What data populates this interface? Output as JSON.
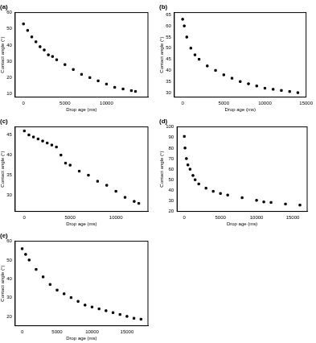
{
  "chart_data": [
    {
      "type": "scatter",
      "title": "(a)",
      "x_label": "Drop age (ms)",
      "y_label": "Contact angle (°)",
      "color": "#000000",
      "marker": "square",
      "grid": false,
      "x": [
        0,
        500,
        1000,
        1500,
        2000,
        2500,
        3000,
        3500,
        4000,
        5000,
        6000,
        7000,
        8000,
        9000,
        10000,
        11000,
        12000,
        13000,
        13500
      ],
      "values": [
        53,
        49,
        45,
        42,
        39,
        37,
        34,
        33,
        31,
        28,
        25,
        22,
        20,
        18,
        16,
        14,
        13,
        12,
        11.5
      ],
      "xlim": [
        -1000,
        15000
      ],
      "xticks": [
        0,
        5000,
        10000
      ],
      "ylim": [
        8,
        60
      ],
      "yticks": [
        10,
        20,
        30,
        40,
        50,
        60
      ]
    },
    {
      "type": "scatter",
      "title": "(b)",
      "x_label": "Drop age (ms)",
      "y_label": "Contact angle (°)",
      "color": "#000000",
      "marker": "square",
      "grid": false,
      "x": [
        0,
        200,
        500,
        1000,
        1500,
        2000,
        3000,
        4000,
        5000,
        6000,
        7000,
        8000,
        9000,
        10000,
        11000,
        12000,
        13000,
        14000
      ],
      "values": [
        63,
        60,
        55,
        50,
        47,
        45,
        42,
        40,
        38,
        36.5,
        35,
        34,
        33,
        32,
        31.5,
        31,
        30.5,
        30
      ],
      "xlim": [
        -1000,
        15000
      ],
      "xticks": [
        0,
        5000,
        10000,
        15000
      ],
      "ylim": [
        28,
        66
      ],
      "yticks": [
        30,
        35,
        40,
        45,
        50,
        55,
        60,
        65
      ]
    },
    {
      "type": "scatter",
      "title": "(c)",
      "x_label": "Drop age (ms)",
      "y_label": "Contact angle (°)",
      "color": "#000000",
      "marker": "square",
      "grid": false,
      "x": [
        0,
        500,
        1000,
        1500,
        2000,
        2500,
        3000,
        3500,
        4000,
        4500,
        5000,
        6000,
        7000,
        8000,
        9000,
        10000,
        11000,
        12000,
        12500
      ],
      "values": [
        46,
        45,
        44.5,
        44,
        43.5,
        43,
        42.5,
        42,
        40,
        38,
        37.5,
        36,
        35,
        33.5,
        32.5,
        31,
        29.5,
        28.5,
        28
      ],
      "xlim": [
        -1000,
        13500
      ],
      "xticks": [
        0,
        5000,
        10000
      ],
      "ylim": [
        26,
        47
      ],
      "yticks": [
        30,
        35,
        40,
        45
      ]
    },
    {
      "type": "scatter",
      "title": "(d)",
      "x_label": "Drop age (ms)",
      "y_label": "Contact angle (°)",
      "color": "#000000",
      "marker": "square",
      "grid": false,
      "x": [
        0,
        100,
        300,
        500,
        800,
        1200,
        1500,
        2000,
        3000,
        4000,
        5000,
        6000,
        8000,
        10000,
        11000,
        12000,
        14000,
        16000
      ],
      "values": [
        91,
        80,
        70,
        64,
        60,
        54,
        50,
        46,
        42,
        39,
        37,
        35.5,
        33,
        30.5,
        29,
        28.5,
        27,
        26
      ],
      "xlim": [
        -1000,
        17000
      ],
      "xticks": [
        0,
        5000,
        10000,
        15000
      ],
      "ylim": [
        20,
        100
      ],
      "yticks": [
        20,
        30,
        40,
        50,
        60,
        70,
        80,
        90,
        100
      ]
    },
    {
      "type": "scatter",
      "title": "(e)",
      "x_label": "Drop age (ms)",
      "y_label": "Contact angle (°)",
      "color": "#000000",
      "marker": "square",
      "grid": false,
      "x": [
        0,
        500,
        1000,
        2000,
        3000,
        4000,
        5000,
        6000,
        7000,
        8000,
        9000,
        10000,
        11000,
        12000,
        13000,
        14000,
        15000,
        16000,
        17000
      ],
      "values": [
        56,
        53,
        50,
        45,
        41,
        37,
        34,
        32,
        30,
        28,
        26,
        25,
        24,
        23,
        22,
        21,
        20,
        19,
        18.5
      ],
      "xlim": [
        -1000,
        18000
      ],
      "xticks": [
        0,
        5000,
        10000,
        15000
      ],
      "ylim": [
        15,
        60
      ],
      "yticks": [
        20,
        30,
        40,
        50,
        60
      ]
    }
  ]
}
